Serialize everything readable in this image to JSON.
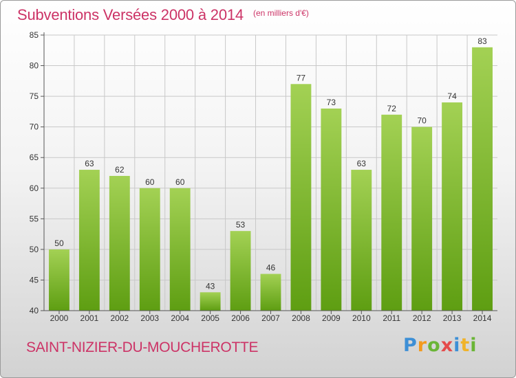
{
  "header": {
    "title": "Subventions Versées 2000 à 2014",
    "subtitle": "(en milliers d'€)"
  },
  "footer": {
    "commune": "SAINT-NIZIER-DU-MOUCHEROTTE",
    "logo": {
      "letters": [
        "P",
        "r",
        "o",
        "x",
        "i",
        "t",
        "i"
      ]
    }
  },
  "colors": {
    "title": "#cc3366",
    "bar_top": "#a3d154",
    "bar_bottom": "#5e9e12",
    "grid": "#c8c8c8"
  },
  "chart_data": {
    "type": "bar",
    "title": "Subventions Versées 2000 à 2014",
    "subtitle": "(en milliers d'€)",
    "xlabel": "",
    "ylabel": "",
    "categories": [
      "2000",
      "2001",
      "2002",
      "2003",
      "2004",
      "2005",
      "2006",
      "2007",
      "2008",
      "2009",
      "2010",
      "2011",
      "2012",
      "2013",
      "2014"
    ],
    "values": [
      50,
      63,
      62,
      60,
      60,
      43,
      53,
      46,
      77,
      73,
      63,
      72,
      70,
      74,
      83
    ],
    "ylim": [
      40,
      85
    ],
    "yticks": [
      40,
      45,
      50,
      55,
      60,
      65,
      70,
      75,
      80,
      85
    ],
    "grid": true,
    "data_labels": true
  }
}
